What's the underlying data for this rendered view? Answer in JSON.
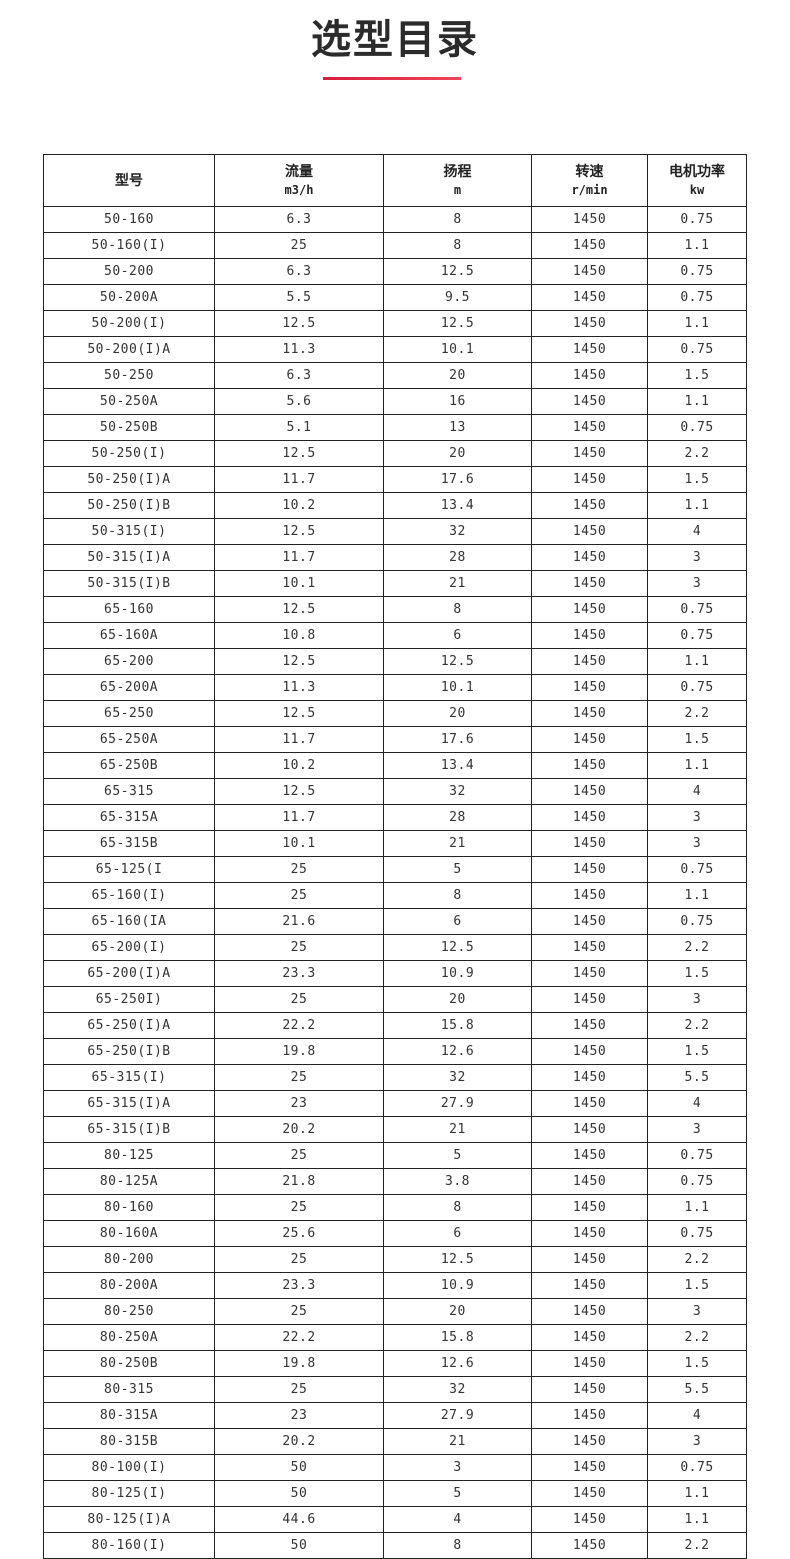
{
  "title": "选型目录",
  "accent_color": "#e02a45",
  "table": {
    "headers": [
      {
        "label": "型号",
        "unit": ""
      },
      {
        "label": "流量",
        "unit": "m3/h"
      },
      {
        "label": "扬程",
        "unit": "m"
      },
      {
        "label": "转速",
        "unit": "r/min"
      },
      {
        "label": "电机功率",
        "unit": "kw"
      }
    ],
    "rows": [
      [
        "50-160",
        "6.3",
        "8",
        "1450",
        "0.75"
      ],
      [
        "50-160(I)",
        "25",
        "8",
        "1450",
        "1.1"
      ],
      [
        "50-200",
        "6.3",
        "12.5",
        "1450",
        "0.75"
      ],
      [
        "50-200A",
        "5.5",
        "9.5",
        "1450",
        "0.75"
      ],
      [
        "50-200(I)",
        "12.5",
        "12.5",
        "1450",
        "1.1"
      ],
      [
        "50-200(I)A",
        "11.3",
        "10.1",
        "1450",
        "0.75"
      ],
      [
        "50-250",
        "6.3",
        "20",
        "1450",
        "1.5"
      ],
      [
        "50-250A",
        "5.6",
        "16",
        "1450",
        "1.1"
      ],
      [
        "50-250B",
        "5.1",
        "13",
        "1450",
        "0.75"
      ],
      [
        "50-250(I)",
        "12.5",
        "20",
        "1450",
        "2.2"
      ],
      [
        "50-250(I)A",
        "11.7",
        "17.6",
        "1450",
        "1.5"
      ],
      [
        "50-250(I)B",
        "10.2",
        "13.4",
        "1450",
        "1.1"
      ],
      [
        "50-315(I)",
        "12.5",
        "32",
        "1450",
        "4"
      ],
      [
        "50-315(I)A",
        "11.7",
        "28",
        "1450",
        "3"
      ],
      [
        "50-315(I)B",
        "10.1",
        "21",
        "1450",
        "3"
      ],
      [
        "65-160",
        "12.5",
        "8",
        "1450",
        "0.75"
      ],
      [
        "65-160A",
        "10.8",
        "6",
        "1450",
        "0.75"
      ],
      [
        "65-200",
        "12.5",
        "12.5",
        "1450",
        "1.1"
      ],
      [
        "65-200A",
        "11.3",
        "10.1",
        "1450",
        "0.75"
      ],
      [
        "65-250",
        "12.5",
        "20",
        "1450",
        "2.2"
      ],
      [
        "65-250A",
        "11.7",
        "17.6",
        "1450",
        "1.5"
      ],
      [
        "65-250B",
        "10.2",
        "13.4",
        "1450",
        "1.1"
      ],
      [
        "65-315",
        "12.5",
        "32",
        "1450",
        "4"
      ],
      [
        "65-315A",
        "11.7",
        "28",
        "1450",
        "3"
      ],
      [
        "65-315B",
        "10.1",
        "21",
        "1450",
        "3"
      ],
      [
        "65-125(I",
        "25",
        "5",
        "1450",
        "0.75"
      ],
      [
        "65-160(I)",
        "25",
        "8",
        "1450",
        "1.1"
      ],
      [
        "65-160(IA",
        "21.6",
        "6",
        "1450",
        "0.75"
      ],
      [
        "65-200(I)",
        "25",
        "12.5",
        "1450",
        "2.2"
      ],
      [
        "65-200(I)A",
        "23.3",
        "10.9",
        "1450",
        "1.5"
      ],
      [
        "65-250I)",
        "25",
        "20",
        "1450",
        "3"
      ],
      [
        "65-250(I)A",
        "22.2",
        "15.8",
        "1450",
        "2.2"
      ],
      [
        "65-250(I)B",
        "19.8",
        "12.6",
        "1450",
        "1.5"
      ],
      [
        "65-315(I)",
        "25",
        "32",
        "1450",
        "5.5"
      ],
      [
        "65-315(I)A",
        "23",
        "27.9",
        "1450",
        "4"
      ],
      [
        "65-315(I)B",
        "20.2",
        "21",
        "1450",
        "3"
      ],
      [
        "80-125",
        "25",
        "5",
        "1450",
        "0.75"
      ],
      [
        "80-125A",
        "21.8",
        "3.8",
        "1450",
        "0.75"
      ],
      [
        "80-160",
        "25",
        "8",
        "1450",
        "1.1"
      ],
      [
        "80-160A",
        "25.6",
        "6",
        "1450",
        "0.75"
      ],
      [
        "80-200",
        "25",
        "12.5",
        "1450",
        "2.2"
      ],
      [
        "80-200A",
        "23.3",
        "10.9",
        "1450",
        "1.5"
      ],
      [
        "80-250",
        "25",
        "20",
        "1450",
        "3"
      ],
      [
        "80-250A",
        "22.2",
        "15.8",
        "1450",
        "2.2"
      ],
      [
        "80-250B",
        "19.8",
        "12.6",
        "1450",
        "1.5"
      ],
      [
        "80-315",
        "25",
        "32",
        "1450",
        "5.5"
      ],
      [
        "80-315A",
        "23",
        "27.9",
        "1450",
        "4"
      ],
      [
        "80-315B",
        "20.2",
        "21",
        "1450",
        "3"
      ],
      [
        "80-100(I)",
        "50",
        "3",
        "1450",
        "0.75"
      ],
      [
        "80-125(I)",
        "50",
        "5",
        "1450",
        "1.1"
      ],
      [
        "80-125(I)A",
        "44.6",
        "4",
        "1450",
        "1.1"
      ],
      [
        "80-160(I)",
        "50",
        "8",
        "1450",
        "2.2"
      ]
    ]
  }
}
